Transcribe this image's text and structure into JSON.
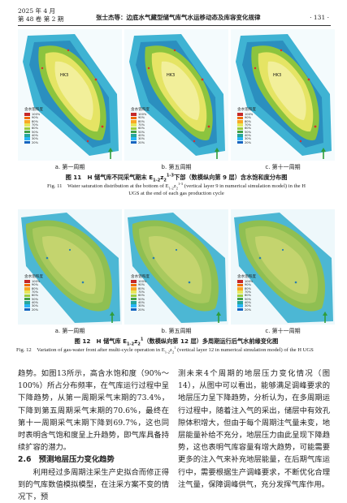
{
  "header": {
    "date": "2025 年 4 月",
    "volume": "第 48 卷 第 2 期",
    "title": "张士杰等：边底水气藏型储气库气水运移动态及库容变化规律",
    "page": "· 131 ·"
  },
  "figures": [
    {
      "panels": [
        {
          "label": "HK3",
          "legend_title": "含水饱和度",
          "legend_labels": [
            "100%",
            "90%",
            "80%",
            "70%",
            "60%",
            "50%",
            "40%",
            "30%",
            "20%"
          ],
          "caption": "a. 第一周期"
        },
        {
          "label": "HK3",
          "legend_title": "含水饱和度",
          "legend_labels": [
            "100%",
            "90%",
            "80%",
            "70%",
            "60%",
            "50%",
            "40%",
            "30%",
            "20%"
          ],
          "caption": "b. 第五周期"
        },
        {
          "label": "HK3",
          "legend_title": "含水饱和度",
          "legend_labels": [
            "100%",
            "90%",
            "80%",
            "70%",
            "60%",
            "50%",
            "40%",
            "30%",
            "20%"
          ],
          "caption": "c. 第十一周期"
        }
      ],
      "caption_cn": [
        "图 11　H 储气库不同采气期末 E",
        "1-2",
        "z",
        "2",
        "1-3",
        "下部（数模纵向第 9 层）含水饱和度分布图"
      ],
      "caption_en": [
        "Fig. 11　Water saturation distribution at the bottom of E",
        "1-2",
        "z",
        "2",
        "1-3",
        " (vertical layer 9 in numerical simulation model) in the H UGS at the end of each gas production cycle"
      ]
    },
    {
      "panels": [
        {
          "legend_title": "含水饱和度",
          "legend_labels": [
            "100%",
            "90%",
            "80%",
            "70%",
            "60%",
            "50%",
            "40%",
            "30%",
            "20%"
          ],
          "caption": "a. 第一周期"
        },
        {
          "legend_title": "含水饱和度",
          "legend_labels": [
            "100%",
            "90%",
            "80%",
            "70%",
            "60%",
            "50%",
            "40%",
            "30%",
            "20%"
          ],
          "caption": "b. 第五周期"
        },
        {
          "legend_title": "含水饱和度",
          "legend_labels": [
            "100%",
            "90%",
            "80%",
            "70%",
            "60%",
            "50%",
            "40%",
            "30%",
            "20%"
          ],
          "caption": "c. 第十一周期"
        }
      ],
      "caption_cn": [
        "图 12　H 储气库 E",
        "1-2",
        "z",
        "2",
        "1",
        "（数模纵向第 12 层）多周期运行后气水前缘变化图"
      ],
      "caption_en": [
        "Fig. 12　Variation of gas-water front after multi-cycle operation in E",
        "1-2",
        "z",
        "2",
        "1",
        " (vertical layer 12 in numerical simulation model) of the H UGS"
      ]
    }
  ],
  "body": {
    "left_paragraph": "趋势。如图13所示，高含水饱和度（90%～100%）所占分布频率，在气库运行过程中呈下降趋势，从第一周期采气末期的73.4%，下降到第五周期采气末期的70.6%，最终在第十一周期采气末期下降到69.7%，这也同时表明含气饱和度呈上升趋势，即气库具备持续扩容的潜力。",
    "heading": "2.6　预测地层压力变化趋势",
    "left_paragraph_2": "利用经过多周期注采生产史拟合而修正得到的气库数值模拟模型，在注采方案不变的情况下，预",
    "right_paragraph": "测未来4个周期的地层压力变化情况（图14），从图中可以看出，能够满足调峰要求的地层压力呈下降趋势，分析认为，在多周期运行过程中，随着注入气的采出，储层中有效孔隙体积增大，但由于每个周期注气量未变，地层能量补给不充分，地层压力由此呈现下降趋势，这也表明气库容量有增大趋势，可能需要更多的注入气来补充地层能量，在后期气库运行中，需要根据生产调峰要求，不断优化合理注气量，保障调峰供气，充分发挥气库作用。"
  }
}
